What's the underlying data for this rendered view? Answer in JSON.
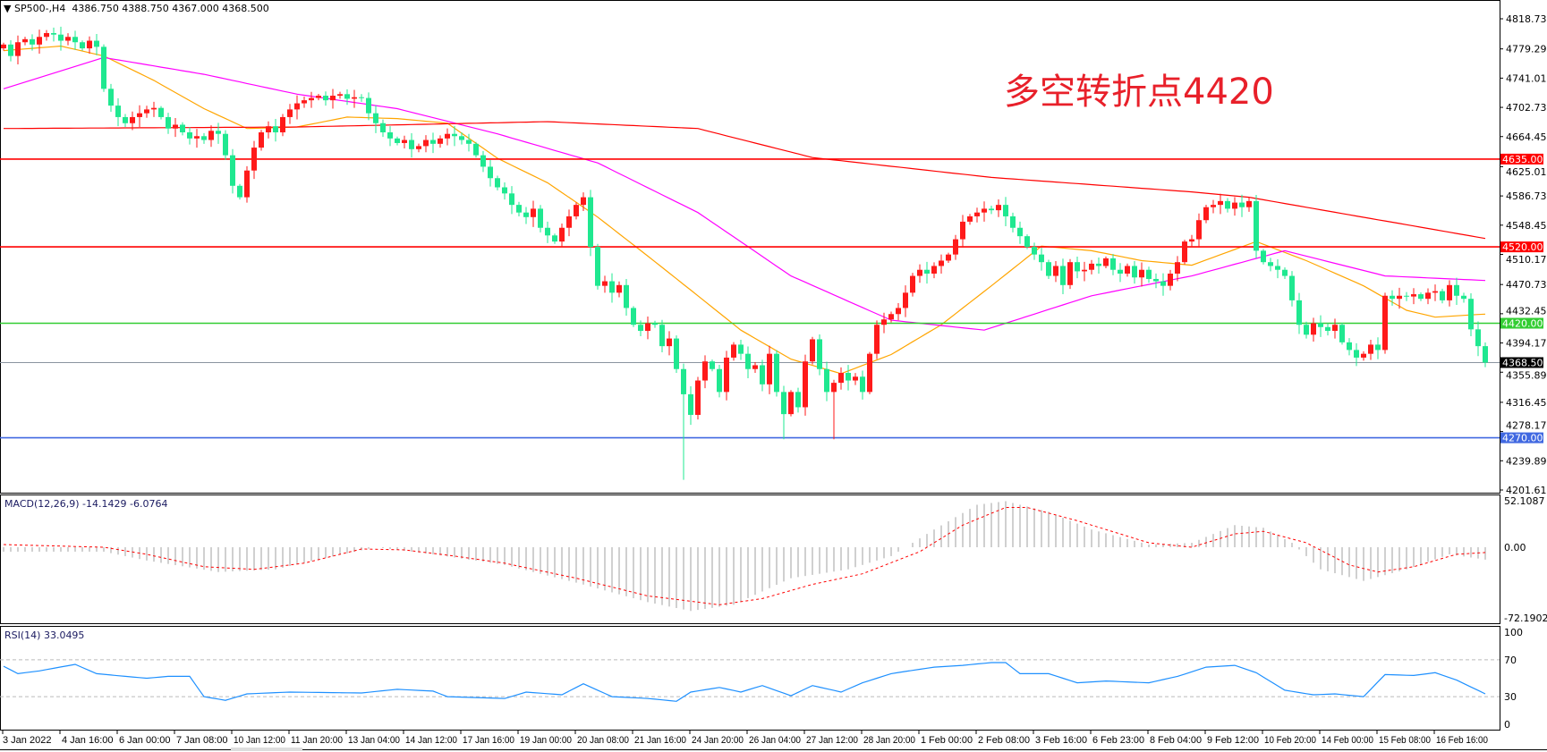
{
  "header": {
    "symbol_label": "SP500-,H4",
    "ohlc": "4386.750 4388.750 4367.000 4368.500"
  },
  "annotation": "多空转折点4420",
  "colors": {
    "bull": "#ff1a1a",
    "bear": "#1fe890",
    "ma_fast": "#ffa500",
    "ma_mid": "#ff00ff",
    "ma_slow": "#ff0000",
    "macd_hist": "#c0c0c0",
    "macd_signal": "#ff0000",
    "rsi": "#1e90ff"
  },
  "chart_data": [
    {
      "type": "candlestick",
      "title": "SP500-,H4",
      "ylim": [
        4201.61,
        4818.73
      ],
      "y_ticks": [
        "4818.730",
        "4779.290",
        "4741.010",
        "4702.730",
        "4664.450",
        "4625.010",
        "4586.730",
        "4548.450",
        "4510.170",
        "4470.730",
        "4432.450",
        "4394.170",
        "4355.890",
        "4316.450",
        "4278.170",
        "4239.890",
        "4201.610"
      ],
      "x_ticks": [
        "3 Jan 2022",
        "4 Jan 16:00",
        "6 Jan 00:00",
        "7 Jan 08:00",
        "10 Jan 12:00",
        "11 Jan 20:00",
        "13 Jan 04:00",
        "14 Jan 12:00",
        "17 Jan 16:00",
        "19 Jan 00:00",
        "20 Jan 08:00",
        "21 Jan 16:00",
        "24 Jan 20:00",
        "26 Jan 04:00",
        "27 Jan 12:00",
        "28 Jan 20:00",
        "1 Feb 00:00",
        "2 Feb 08:00",
        "3 Feb 16:00",
        "6 Feb 23:00",
        "8 Feb 04:00",
        "9 Feb 12:00",
        "10 Feb 20:00",
        "14 Feb 00:00",
        "15 Feb 08:00",
        "16 Feb 16:00"
      ],
      "x_tick_every_bars": 8,
      "close": [
        4785,
        4770,
        4788,
        4792,
        4785,
        4795,
        4800,
        4798,
        4790,
        4795,
        4788,
        4780,
        4790,
        4782,
        4727,
        4705,
        4690,
        4682,
        4690,
        4695,
        4700,
        4702,
        4690,
        4675,
        4680,
        4670,
        4662,
        4665,
        4660,
        4672,
        4668,
        4640,
        4600,
        4585,
        4620,
        4650,
        4670,
        4678,
        4670,
        4690,
        4700,
        4708,
        4712,
        4715,
        4718,
        4712,
        4718,
        4720,
        4714,
        4716,
        4715,
        4695,
        4682,
        4670,
        4662,
        4656,
        4660,
        4648,
        4652,
        4660,
        4655,
        4662,
        4668,
        4665,
        4660,
        4655,
        4640,
        4625,
        4610,
        4598,
        4590,
        4575,
        4565,
        4559,
        4570,
        4545,
        4535,
        4527,
        4545,
        4560,
        4575,
        4585,
        4520,
        4469,
        4475,
        4460,
        4470,
        4440,
        4418,
        4410,
        4420,
        4418,
        4390,
        4400,
        4360,
        4327,
        4300,
        4345,
        4370,
        4360,
        4330,
        4375,
        4392,
        4380,
        4360,
        4365,
        4340,
        4380,
        4330,
        4301,
        4330,
        4310,
        4370,
        4399,
        4360,
        4330,
        4342,
        4355,
        4345,
        4350,
        4330,
        4380,
        4418,
        4425,
        4432,
        4440,
        4460,
        4482,
        4490,
        4485,
        4495,
        4502,
        4510,
        4530,
        4553,
        4560,
        4565,
        4570,
        4568,
        4575,
        4560,
        4545,
        4534,
        4520,
        4510,
        4500,
        4482,
        4495,
        4470,
        4500,
        4488,
        4490,
        4498,
        4495,
        4505,
        4490,
        4485,
        4495,
        4480,
        4490,
        4478,
        4475,
        4469,
        4485,
        4500,
        4527,
        4530,
        4555,
        4572,
        4575,
        4580,
        4570,
        4578,
        4572,
        4580,
        4515,
        4500,
        4495,
        4490,
        4482,
        4450,
        4418,
        4405,
        4420,
        4415,
        4410,
        4418,
        4395,
        4385,
        4375,
        4380,
        4392,
        4385,
        4456,
        4452,
        4456,
        4455,
        4458,
        4452,
        4460,
        4462,
        4450,
        4470,
        4456,
        4452,
        4412,
        4390,
        4368.5
      ],
      "extreme_lows": [
        [
          95,
          4215
        ],
        [
          109,
          4268
        ],
        [
          116,
          4268
        ]
      ],
      "moving_averages": [
        {
          "color_key": "ma_fast",
          "points": [
            [
              0,
              4777
            ],
            [
              8,
              4783
            ],
            [
              14,
              4770
            ],
            [
              21,
              4738
            ],
            [
              28,
              4701
            ],
            [
              34,
              4675
            ],
            [
              41,
              4677
            ],
            [
              48,
              4690
            ],
            [
              55,
              4688
            ],
            [
              62,
              4682
            ],
            [
              69,
              4636
            ],
            [
              76,
              4604
            ],
            [
              83,
              4559
            ],
            [
              90,
              4508
            ],
            [
              97,
              4456
            ],
            [
              103,
              4411
            ],
            [
              110,
              4373
            ],
            [
              117,
              4354
            ],
            [
              124,
              4379
            ],
            [
              131,
              4418
            ],
            [
              138,
              4469
            ],
            [
              145,
              4521
            ],
            [
              152,
              4515
            ],
            [
              159,
              4502
            ],
            [
              166,
              4496
            ],
            [
              175,
              4527
            ],
            [
              182,
              4502
            ],
            [
              190,
              4469
            ],
            [
              196,
              4437
            ],
            [
              200,
              4428
            ],
            [
              207,
              4432
            ]
          ]
        },
        {
          "color_key": "ma_mid",
          "points": [
            [
              0,
              4727
            ],
            [
              14,
              4768
            ],
            [
              28,
              4746
            ],
            [
              41,
              4720
            ],
            [
              55,
              4701
            ],
            [
              69,
              4668
            ],
            [
              83,
              4630
            ],
            [
              97,
              4565
            ],
            [
              110,
              4482
            ],
            [
              124,
              4424
            ],
            [
              137,
              4411
            ],
            [
              152,
              4456
            ],
            [
              166,
              4482
            ],
            [
              179,
              4515
            ],
            [
              193,
              4482
            ],
            [
              207,
              4476
            ]
          ]
        },
        {
          "color_key": "ma_slow",
          "points": [
            [
              0,
              4675
            ],
            [
              41,
              4677
            ],
            [
              76,
              4684
            ],
            [
              97,
              4675
            ],
            [
              113,
              4637
            ],
            [
              138,
              4611
            ],
            [
              166,
              4592
            ],
            [
              174,
              4585
            ],
            [
              207,
              4531
            ]
          ]
        }
      ],
      "horizontal_lines": [
        {
          "value": 4635,
          "label": "4635.000",
          "color": "#ff0000"
        },
        {
          "value": 4520,
          "label": "4520.000",
          "color": "#ff0000"
        },
        {
          "value": 4420,
          "label": "4420.000",
          "color": "#32cd32"
        },
        {
          "value": 4368.5,
          "label": "4368.500",
          "color": "#000000",
          "line_color": "#8a94a0"
        },
        {
          "value": 4270,
          "label": "4270.000",
          "color": "#4169e1"
        }
      ]
    },
    {
      "type": "bar+line",
      "title": "MACD(12,26,9) -14.1429 -6.0764",
      "ylim": [
        -72.1902,
        52.1087
      ],
      "y_ticks": [
        "52.1087",
        "0.00",
        "-72.1902"
      ],
      "histogram_points": [
        [
          0,
          -5
        ],
        [
          14,
          -5
        ],
        [
          20,
          -15
        ],
        [
          30,
          -28
        ],
        [
          38,
          -25
        ],
        [
          45,
          -12
        ],
        [
          52,
          0
        ],
        [
          60,
          -8
        ],
        [
          70,
          -20
        ],
        [
          80,
          -40
        ],
        [
          90,
          -62
        ],
        [
          96,
          -72
        ],
        [
          102,
          -65
        ],
        [
          110,
          -35
        ],
        [
          118,
          -25
        ],
        [
          124,
          -10
        ],
        [
          130,
          20
        ],
        [
          136,
          48
        ],
        [
          140,
          52
        ],
        [
          146,
          40
        ],
        [
          152,
          20
        ],
        [
          160,
          3
        ],
        [
          166,
          5
        ],
        [
          172,
          25
        ],
        [
          176,
          22
        ],
        [
          180,
          5
        ],
        [
          184,
          -25
        ],
        [
          190,
          -38
        ],
        [
          196,
          -25
        ],
        [
          202,
          -8
        ],
        [
          207,
          -14
        ]
      ],
      "signal_points": [
        [
          0,
          3
        ],
        [
          14,
          0
        ],
        [
          20,
          -8
        ],
        [
          28,
          -22
        ],
        [
          35,
          -25
        ],
        [
          42,
          -18
        ],
        [
          50,
          -2
        ],
        [
          56,
          -3
        ],
        [
          63,
          -10
        ],
        [
          70,
          -18
        ],
        [
          80,
          -35
        ],
        [
          90,
          -55
        ],
        [
          100,
          -65
        ],
        [
          106,
          -58
        ],
        [
          113,
          -42
        ],
        [
          120,
          -30
        ],
        [
          128,
          -5
        ],
        [
          134,
          25
        ],
        [
          140,
          45
        ],
        [
          143,
          45
        ],
        [
          150,
          30
        ],
        [
          160,
          5
        ],
        [
          166,
          0
        ],
        [
          172,
          15
        ],
        [
          176,
          18
        ],
        [
          182,
          5
        ],
        [
          188,
          -20
        ],
        [
          192,
          -28
        ],
        [
          197,
          -22
        ],
        [
          203,
          -8
        ],
        [
          207,
          -6
        ]
      ]
    },
    {
      "type": "line",
      "title": "RSI(14) 33.0495",
      "ylim": [
        0,
        100
      ],
      "y_ticks": [
        "100",
        "70",
        "30",
        "0"
      ],
      "levels": [
        70,
        30
      ],
      "points": [
        [
          0,
          63
        ],
        [
          2,
          55
        ],
        [
          5,
          58
        ],
        [
          10,
          65
        ],
        [
          13,
          55
        ],
        [
          17,
          52
        ],
        [
          20,
          50
        ],
        [
          23,
          52
        ],
        [
          26,
          52
        ],
        [
          28,
          30
        ],
        [
          31,
          26
        ],
        [
          34,
          33
        ],
        [
          40,
          35
        ],
        [
          50,
          34
        ],
        [
          55,
          38
        ],
        [
          60,
          36
        ],
        [
          62,
          30
        ],
        [
          70,
          28
        ],
        [
          73,
          35
        ],
        [
          78,
          32
        ],
        [
          81,
          44
        ],
        [
          85,
          30
        ],
        [
          90,
          28
        ],
        [
          94,
          25
        ],
        [
          96,
          35
        ],
        [
          100,
          40
        ],
        [
          103,
          35
        ],
        [
          106,
          42
        ],
        [
          110,
          31
        ],
        [
          113,
          42
        ],
        [
          117,
          35
        ],
        [
          120,
          45
        ],
        [
          124,
          55
        ],
        [
          130,
          62
        ],
        [
          134,
          64
        ],
        [
          138,
          67
        ],
        [
          140,
          67
        ],
        [
          142,
          55
        ],
        [
          146,
          55
        ],
        [
          150,
          45
        ],
        [
          154,
          47
        ],
        [
          160,
          45
        ],
        [
          164,
          52
        ],
        [
          168,
          62
        ],
        [
          172,
          64
        ],
        [
          175,
          56
        ],
        [
          179,
          37
        ],
        [
          183,
          32
        ],
        [
          186,
          33
        ],
        [
          190,
          30
        ],
        [
          193,
          54
        ],
        [
          197,
          53
        ],
        [
          200,
          56
        ],
        [
          203,
          48
        ],
        [
          207,
          33
        ]
      ]
    }
  ]
}
